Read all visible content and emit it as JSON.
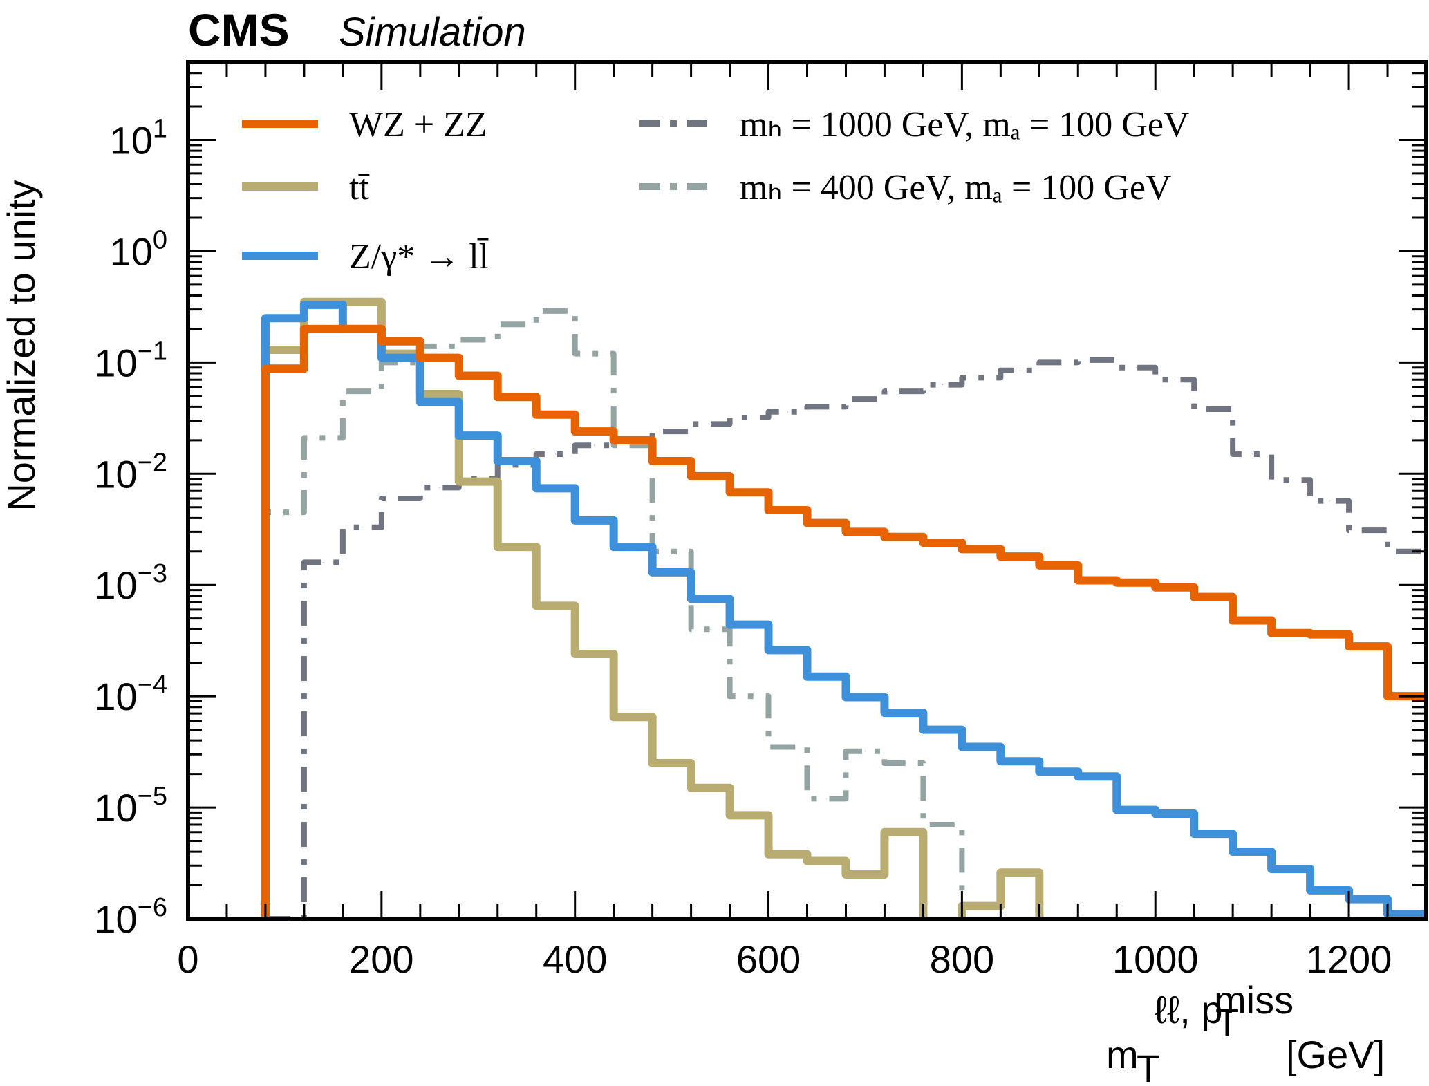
{
  "header": {
    "experiment": "CMS",
    "label": "Simulation"
  },
  "chart_data": {
    "type": "line",
    "style": "step-histogram",
    "title": "CMS Simulation",
    "xlabel": "m_T^{ll, p_T^miss} [GeV]",
    "xlabel_parts": {
      "main": "m",
      "sub": "T",
      "sup_ll": "ℓℓ, p",
      "sup_T": "T",
      "sup_miss": "miss",
      "unit": "[GeV]"
    },
    "ylabel": "Normalized to unity",
    "xlim": [
      0,
      1280
    ],
    "ylim": [
      1e-06,
      50
    ],
    "yscale": "log",
    "grid": false,
    "legend_position": "top",
    "x_ticks": [
      0,
      200,
      400,
      600,
      800,
      1000,
      1200
    ],
    "x_tick_labels": [
      "0",
      "200",
      "400",
      "600",
      "800",
      "1000",
      "1200"
    ],
    "y_ticks": [
      1e-06,
      1e-05,
      0.0001,
      0.001,
      0.01,
      0.1,
      1,
      10
    ],
    "y_tick_labels": [
      {
        "base": "10",
        "exp": "−6"
      },
      {
        "base": "10",
        "exp": "−5"
      },
      {
        "base": "10",
        "exp": "−4"
      },
      {
        "base": "10",
        "exp": "−3"
      },
      {
        "base": "10",
        "exp": "−2"
      },
      {
        "base": "10",
        "exp": "−1"
      },
      {
        "base": "10",
        "exp": "0"
      },
      {
        "base": "10",
        "exp": "1"
      }
    ],
    "bin_edges": [
      80,
      120,
      160,
      200,
      240,
      280,
      320,
      360,
      400,
      440,
      480,
      520,
      560,
      600,
      640,
      680,
      720,
      760,
      800,
      840,
      880,
      920,
      960,
      1000,
      1040,
      1080,
      1120,
      1160,
      1200,
      1240,
      1280
    ],
    "series": [
      {
        "name": "WZ + ZZ",
        "color": "#e76300",
        "dash": "solid",
        "values": [
          0.088,
          0.2,
          0.2,
          0.155,
          0.11,
          0.076,
          0.049,
          0.034,
          0.024,
          0.02,
          0.013,
          0.0095,
          0.0068,
          0.0047,
          0.0036,
          0.003,
          0.0027,
          0.0024,
          0.0021,
          0.0018,
          0.0015,
          0.0011,
          0.00105,
          0.00095,
          0.00078,
          0.00048,
          0.00037,
          0.00036,
          0.00028,
          0.0001
        ]
      },
      {
        "name": "tt̄",
        "color": "#b9ac70",
        "dash": "solid",
        "values": [
          0.13,
          0.35,
          0.35,
          0.12,
          0.052,
          0.0085,
          0.0022,
          0.00065,
          0.00024,
          6.5e-05,
          2.5e-05,
          1.5e-05,
          8.5e-06,
          3.8e-06,
          3.3e-06,
          2.5e-06,
          6e-06,
          0,
          1.3e-06,
          2.6e-06,
          0,
          0,
          0,
          0,
          0,
          0,
          0,
          0,
          0,
          0
        ]
      },
      {
        "name": "Z/γ* → ll̄",
        "color": "#3f90da",
        "dash": "solid",
        "values": [
          0.25,
          0.33,
          0.2,
          0.11,
          0.044,
          0.022,
          0.013,
          0.0074,
          0.0038,
          0.0022,
          0.0013,
          0.00075,
          0.00044,
          0.00026,
          0.00015,
          9.8e-05,
          7.1e-05,
          5e-05,
          3.5e-05,
          2.6e-05,
          2.1e-05,
          1.9e-05,
          9.5e-06,
          8.8e-06,
          5.8e-06,
          4e-06,
          2.8e-06,
          1.8e-06,
          1.5e-06,
          1.1e-06
        ]
      },
      {
        "name": "m_H = 1000 GeV, m_a = 100 GeV",
        "color": "#717581",
        "dash": "dashdot",
        "values": [
          4e-07,
          0.0016,
          0.0033,
          0.006,
          0.0075,
          0.009,
          0.012,
          0.015,
          0.018,
          0.02,
          0.024,
          0.028,
          0.032,
          0.036,
          0.04,
          0.047,
          0.055,
          0.063,
          0.073,
          0.085,
          0.1,
          0.105,
          0.09,
          0.07,
          0.038,
          0.015,
          0.0088,
          0.0057,
          0.0031,
          0.002
        ]
      },
      {
        "name": "m_H = 400 GeV, m_a = 100 GeV",
        "color": "#94a4a2",
        "dash": "dashdot",
        "values": [
          0.0045,
          0.021,
          0.055,
          0.1,
          0.14,
          0.16,
          0.22,
          0.29,
          0.12,
          0.018,
          0.002,
          0.0004,
          0.0001,
          3.5e-05,
          1.2e-05,
          3.2e-05,
          2.5e-05,
          7e-06,
          0,
          0,
          0,
          0,
          0,
          0,
          0,
          0,
          0,
          0,
          0,
          0
        ]
      }
    ]
  }
}
